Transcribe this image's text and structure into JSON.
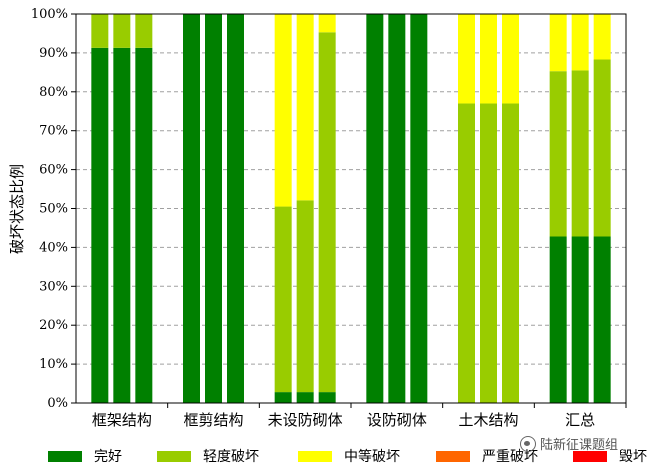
{
  "chart_data": {
    "type": "bar",
    "stacked": true,
    "bars_per_category": 3,
    "title": "",
    "xlabel": "",
    "ylabel": "破坏状态比例",
    "ylim": [
      0,
      100
    ],
    "yticks": [
      "0%",
      "10%",
      "20%",
      "30%",
      "40%",
      "50%",
      "60%",
      "70%",
      "80%",
      "90%",
      "100%"
    ],
    "grid": "horizontal-dashed",
    "legend_position": "bottom",
    "categories": [
      "框架结构",
      "框剪结构",
      "未设防砌体",
      "设防砌体",
      "土木结构",
      "汇总"
    ],
    "series": [
      {
        "name": "完好",
        "color": "#008000",
        "values": [
          [
            91.3,
            91.3,
            91.3
          ],
          [
            100,
            100,
            100
          ],
          [
            2.8,
            2.8,
            2.8
          ],
          [
            100,
            100,
            100
          ],
          [
            0,
            0,
            0
          ],
          [
            42.8,
            42.8,
            42.8
          ]
        ]
      },
      {
        "name": "轻度破坏",
        "color": "#99cc00",
        "values": [
          [
            8.7,
            8.7,
            8.7
          ],
          [
            0,
            0,
            0
          ],
          [
            47.7,
            49.3,
            92.5
          ],
          [
            0,
            0,
            0
          ],
          [
            77,
            77,
            77
          ],
          [
            42.5,
            42.7,
            45.5
          ]
        ]
      },
      {
        "name": "中等破坏",
        "color": "#ffff00",
        "values": [
          [
            0,
            0,
            0
          ],
          [
            0,
            0,
            0
          ],
          [
            49.5,
            47.9,
            4.7
          ],
          [
            0,
            0,
            0
          ],
          [
            23,
            23,
            23
          ],
          [
            14.7,
            14.5,
            11.7
          ]
        ]
      },
      {
        "name": "严重破坏",
        "color": "#ff6600",
        "values": [
          [
            0,
            0,
            0
          ],
          [
            0,
            0,
            0
          ],
          [
            0,
            0,
            0
          ],
          [
            0,
            0,
            0
          ],
          [
            0,
            0,
            0
          ],
          [
            0,
            0,
            0
          ]
        ]
      },
      {
        "name": "毁坏",
        "color": "#ff0000",
        "values": [
          [
            0,
            0,
            0
          ],
          [
            0,
            0,
            0
          ],
          [
            0,
            0,
            0
          ],
          [
            0,
            0,
            0
          ],
          [
            0,
            0,
            0
          ],
          [
            0,
            0,
            0
          ]
        ]
      }
    ]
  },
  "watermark": {
    "text": "陆新征课题组"
  }
}
